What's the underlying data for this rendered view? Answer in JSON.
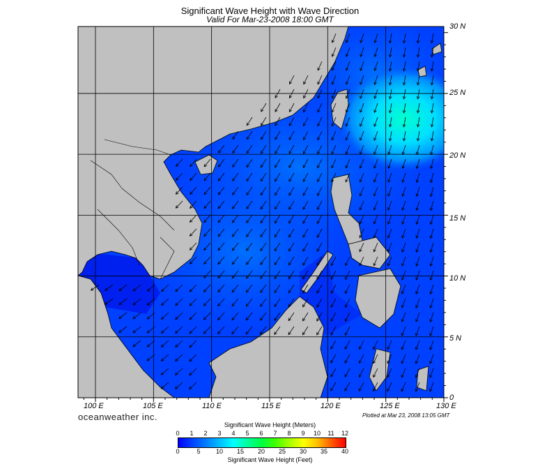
{
  "header": {
    "title": "Significant Wave Height with Wave Direction",
    "subtitle": "Valid For Mar-23-2008 18:00 GMT"
  },
  "map": {
    "lon_labels": [
      "100 E",
      "105 E",
      "110 E",
      "115 E",
      "120 E",
      "125 E",
      "130 E"
    ],
    "lat_labels": [
      "30 N",
      "25 N",
      "20 N",
      "15 N",
      "10 N",
      "5 N",
      "0"
    ],
    "colors": {
      "land": "#c0c0c0",
      "sea_low": "#0000ff",
      "sea_mid": "#0060ff",
      "sea_high": "#00ffc0",
      "grid": "#000000"
    }
  },
  "footer": {
    "brand": "oceanweather inc.",
    "plotted": "Plotted at Mar 23, 2008 13:05 GMT"
  },
  "colorbar": {
    "title_top": "Significant Wave Height (Meters)",
    "title_bottom": "Significant Wave Height (Feet)",
    "meters": [
      "0",
      "1",
      "2",
      "3",
      "4",
      "5",
      "6",
      "7",
      "8",
      "9",
      "10",
      "11",
      "12"
    ],
    "feet": [
      "0",
      "5",
      "10",
      "15",
      "20",
      "25",
      "30",
      "35",
      "40"
    ]
  }
}
